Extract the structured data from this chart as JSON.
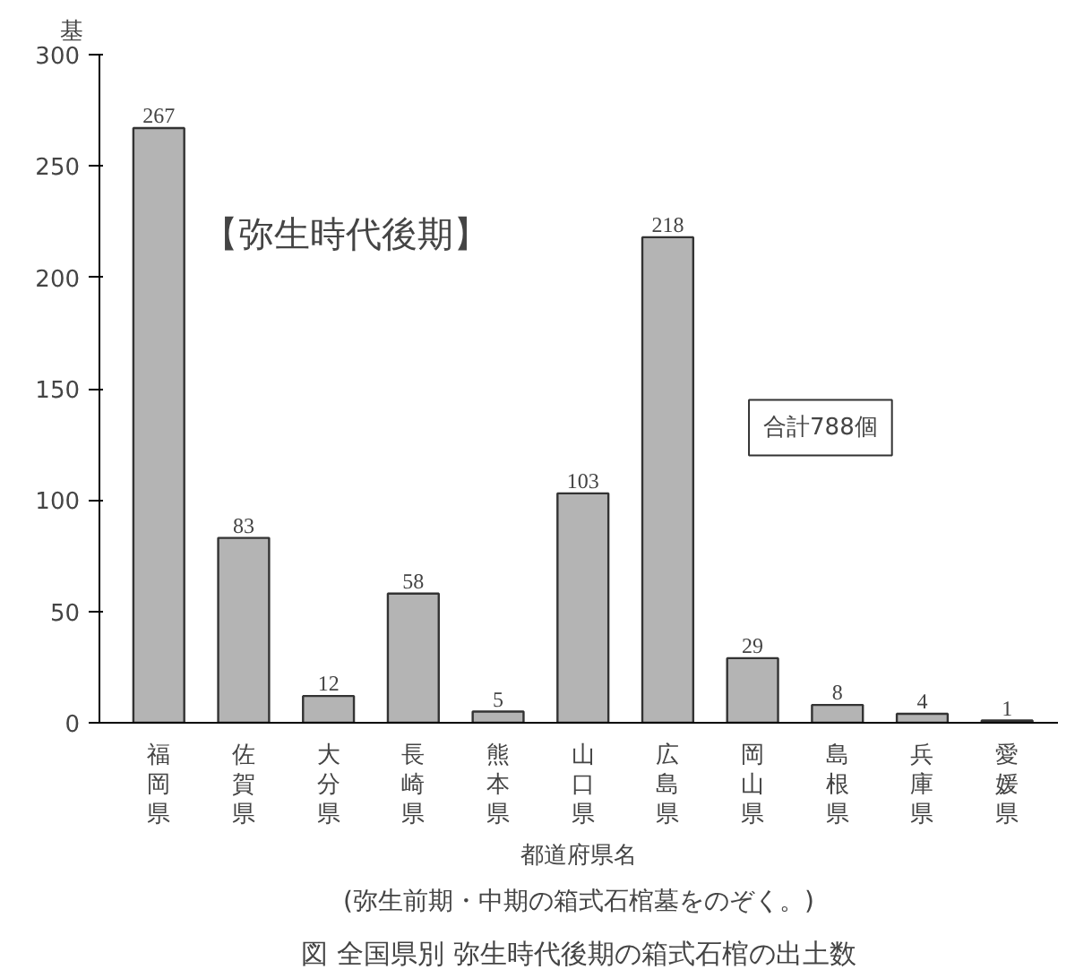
{
  "chart_data": {
    "type": "bar",
    "title": "図 全国県別 弥生時代後期の箱式石棺の出土数",
    "subtitle": "(弥生前期・中期の箱式石棺墓をのぞく。)",
    "xlabel": "都道府県名",
    "ylabel": "基",
    "categories": [
      "福岡県",
      "佐賀県",
      "大分県",
      "長崎県",
      "熊本県",
      "山口県",
      "広島県",
      "岡山県",
      "島根県",
      "兵庫県",
      "愛媛県"
    ],
    "values": [
      267,
      83,
      12,
      58,
      5,
      103,
      218,
      29,
      8,
      4,
      1
    ],
    "color": "#b4b4b4",
    "data_labels": true,
    "grid": false,
    "ylim": [
      0,
      300
    ],
    "yticks": [
      0,
      50,
      100,
      150,
      200,
      250,
      300
    ],
    "annotations": [
      "【弥生時代後期】",
      "合計788個"
    ]
  }
}
